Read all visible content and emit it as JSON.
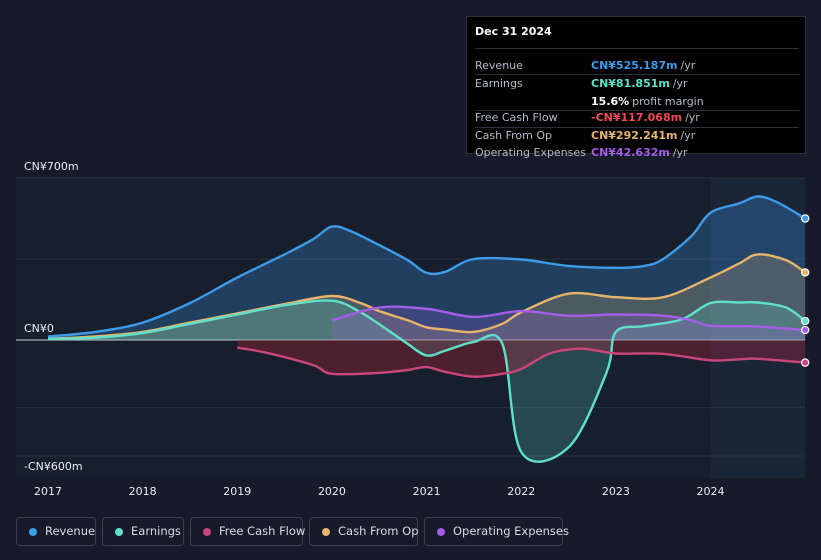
{
  "tooltip": {
    "date": "Dec 31 2024",
    "rows": [
      {
        "label": "Revenue",
        "value": "CN¥525.187m",
        "unit": "/yr",
        "color": "#3d9be9"
      },
      {
        "label": "Earnings",
        "value": "CN¥81.851m",
        "unit": "/yr",
        "color": "#5fe1c9"
      },
      {
        "label": "",
        "value": "15.6%",
        "unit": "profit margin",
        "color": "#ffffff"
      },
      {
        "label": "Free Cash Flow",
        "value": "-CN¥117.068m",
        "unit": "/yr",
        "color": "#f04a5a"
      },
      {
        "label": "Cash From Op",
        "value": "CN¥292.241m",
        "unit": "/yr",
        "color": "#e8b46a"
      },
      {
        "label": "Operating Expenses",
        "value": "CN¥42.632m",
        "unit": "/yr",
        "color": "#a65ee8"
      }
    ]
  },
  "chart_data": {
    "type": "area",
    "title": "",
    "xlabel": "",
    "ylabel": "",
    "ylim": [
      -600,
      700
    ],
    "y_tick_labels": [
      "CN¥700m",
      "CN¥0",
      "-CN¥600m"
    ],
    "y_tick_values": [
      700,
      0,
      -600
    ],
    "x_tick_labels": [
      "2017",
      "2018",
      "2019",
      "2020",
      "2021",
      "2022",
      "2023",
      "2024"
    ],
    "x_tick_values": [
      2017,
      2018,
      2019,
      2020,
      2021,
      2022,
      2023,
      2024
    ],
    "xlim": [
      2016.7,
      2025.0
    ],
    "forecast_start": 2024.0,
    "grid": true,
    "legend_position": "bottom",
    "series": [
      {
        "name": "Revenue",
        "color": "#3d9be9",
        "fill": true,
        "points": [
          [
            2017.0,
            15
          ],
          [
            2017.5,
            35
          ],
          [
            2018.0,
            75
          ],
          [
            2018.5,
            160
          ],
          [
            2019.0,
            270
          ],
          [
            2019.5,
            370
          ],
          [
            2019.8,
            435
          ],
          [
            2020.0,
            490
          ],
          [
            2020.2,
            470
          ],
          [
            2020.5,
            410
          ],
          [
            2020.8,
            345
          ],
          [
            2021.0,
            290
          ],
          [
            2021.2,
            295
          ],
          [
            2021.5,
            350
          ],
          [
            2022.0,
            348
          ],
          [
            2022.5,
            320
          ],
          [
            2023.0,
            312
          ],
          [
            2023.3,
            320
          ],
          [
            2023.5,
            350
          ],
          [
            2023.8,
            450
          ],
          [
            2024.0,
            550
          ],
          [
            2024.3,
            590
          ],
          [
            2024.5,
            620
          ],
          [
            2024.7,
            596
          ],
          [
            2025.0,
            525
          ]
        ]
      },
      {
        "name": "Earnings",
        "color": "#5fe1c9",
        "fill": true,
        "points": [
          [
            2017.0,
            5
          ],
          [
            2017.5,
            10
          ],
          [
            2018.0,
            30
          ],
          [
            2018.5,
            70
          ],
          [
            2019.0,
            110
          ],
          [
            2019.5,
            150
          ],
          [
            2020.0,
            170
          ],
          [
            2020.3,
            120
          ],
          [
            2020.6,
            40
          ],
          [
            2020.8,
            -20
          ],
          [
            2021.0,
            -80
          ],
          [
            2021.2,
            -55
          ],
          [
            2021.5,
            -10
          ],
          [
            2021.8,
            -20
          ],
          [
            2022.0,
            -580
          ],
          [
            2022.5,
            -555
          ],
          [
            2022.9,
            -170
          ],
          [
            2023.0,
            35
          ],
          [
            2023.3,
            60
          ],
          [
            2023.7,
            90
          ],
          [
            2024.0,
            160
          ],
          [
            2024.3,
            162
          ],
          [
            2024.5,
            162
          ],
          [
            2024.8,
            140
          ],
          [
            2025.0,
            82
          ]
        ]
      },
      {
        "name": "Free Cash Flow",
        "color": "#c9457c",
        "fill": true,
        "points": [
          [
            2019.0,
            -40
          ],
          [
            2019.3,
            -65
          ],
          [
            2019.8,
            -130
          ],
          [
            2020.0,
            -175
          ],
          [
            2020.5,
            -170
          ],
          [
            2020.8,
            -155
          ],
          [
            2021.0,
            -140
          ],
          [
            2021.2,
            -165
          ],
          [
            2021.5,
            -190
          ],
          [
            2021.8,
            -175
          ],
          [
            2022.0,
            -150
          ],
          [
            2022.3,
            -70
          ],
          [
            2022.6,
            -45
          ],
          [
            2022.8,
            -55
          ],
          [
            2023.0,
            -70
          ],
          [
            2023.5,
            -72
          ],
          [
            2024.0,
            -105
          ],
          [
            2024.3,
            -100
          ],
          [
            2024.5,
            -97
          ],
          [
            2025.0,
            -117
          ]
        ]
      },
      {
        "name": "Cash From Op",
        "color": "#e8b46a",
        "fill": true,
        "points": [
          [
            2017.0,
            5
          ],
          [
            2017.5,
            15
          ],
          [
            2018.0,
            35
          ],
          [
            2018.5,
            75
          ],
          [
            2019.0,
            115
          ],
          [
            2019.5,
            155
          ],
          [
            2020.0,
            190
          ],
          [
            2020.3,
            160
          ],
          [
            2020.5,
            125
          ],
          [
            2020.8,
            85
          ],
          [
            2021.0,
            55
          ],
          [
            2021.2,
            45
          ],
          [
            2021.5,
            35
          ],
          [
            2021.8,
            70
          ],
          [
            2022.0,
            120
          ],
          [
            2022.5,
            200
          ],
          [
            2023.0,
            185
          ],
          [
            2023.5,
            185
          ],
          [
            2024.0,
            270
          ],
          [
            2024.3,
            330
          ],
          [
            2024.5,
            370
          ],
          [
            2024.8,
            345
          ],
          [
            2025.0,
            292
          ]
        ]
      },
      {
        "name": "Operating Expenses",
        "color": "#a65ee8",
        "fill": true,
        "points": [
          [
            2020.0,
            85
          ],
          [
            2020.5,
            140
          ],
          [
            2021.0,
            135
          ],
          [
            2021.5,
            100
          ],
          [
            2022.0,
            125
          ],
          [
            2022.5,
            105
          ],
          [
            2023.0,
            110
          ],
          [
            2023.5,
            105
          ],
          [
            2023.8,
            85
          ],
          [
            2024.0,
            62
          ],
          [
            2024.5,
            58
          ],
          [
            2025.0,
            43
          ]
        ]
      }
    ]
  },
  "legend": [
    {
      "label": "Revenue",
      "color": "#3d9be9"
    },
    {
      "label": "Earnings",
      "color": "#5fe1c9"
    },
    {
      "label": "Free Cash Flow",
      "color": "#c9457c"
    },
    {
      "label": "Cash From Op",
      "color": "#e8b46a"
    },
    {
      "label": "Operating Expenses",
      "color": "#a65ee8"
    }
  ]
}
